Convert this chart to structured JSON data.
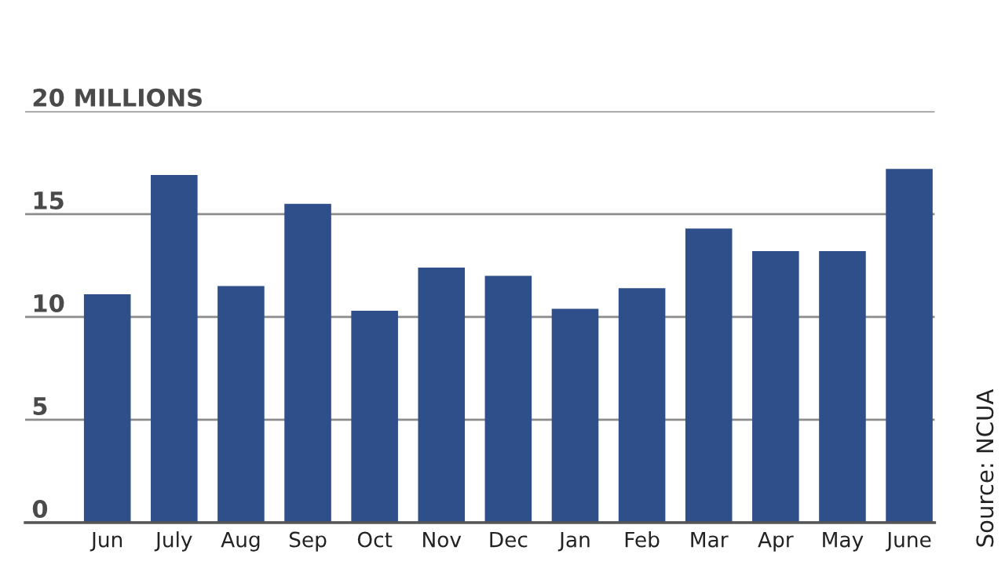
{
  "chart_data": {
    "type": "bar",
    "categories": [
      "Jun",
      "July",
      "Aug",
      "Sep",
      "Oct",
      "Nov",
      "Dec",
      "Jan",
      "Feb",
      "Mar",
      "Apr",
      "May",
      "June"
    ],
    "values": [
      11.1,
      16.9,
      11.5,
      15.5,
      10.3,
      12.4,
      12.0,
      10.4,
      11.4,
      14.3,
      13.2,
      13.2,
      17.2
    ],
    "color": "#2e4f8a",
    "ylim": [
      0,
      20
    ],
    "yticks": [
      0,
      5,
      10,
      15,
      {
        "value": 20,
        "label": "20 MILLIONS"
      }
    ],
    "grid": "y",
    "annotations": [
      "Source: NCUA"
    ]
  }
}
